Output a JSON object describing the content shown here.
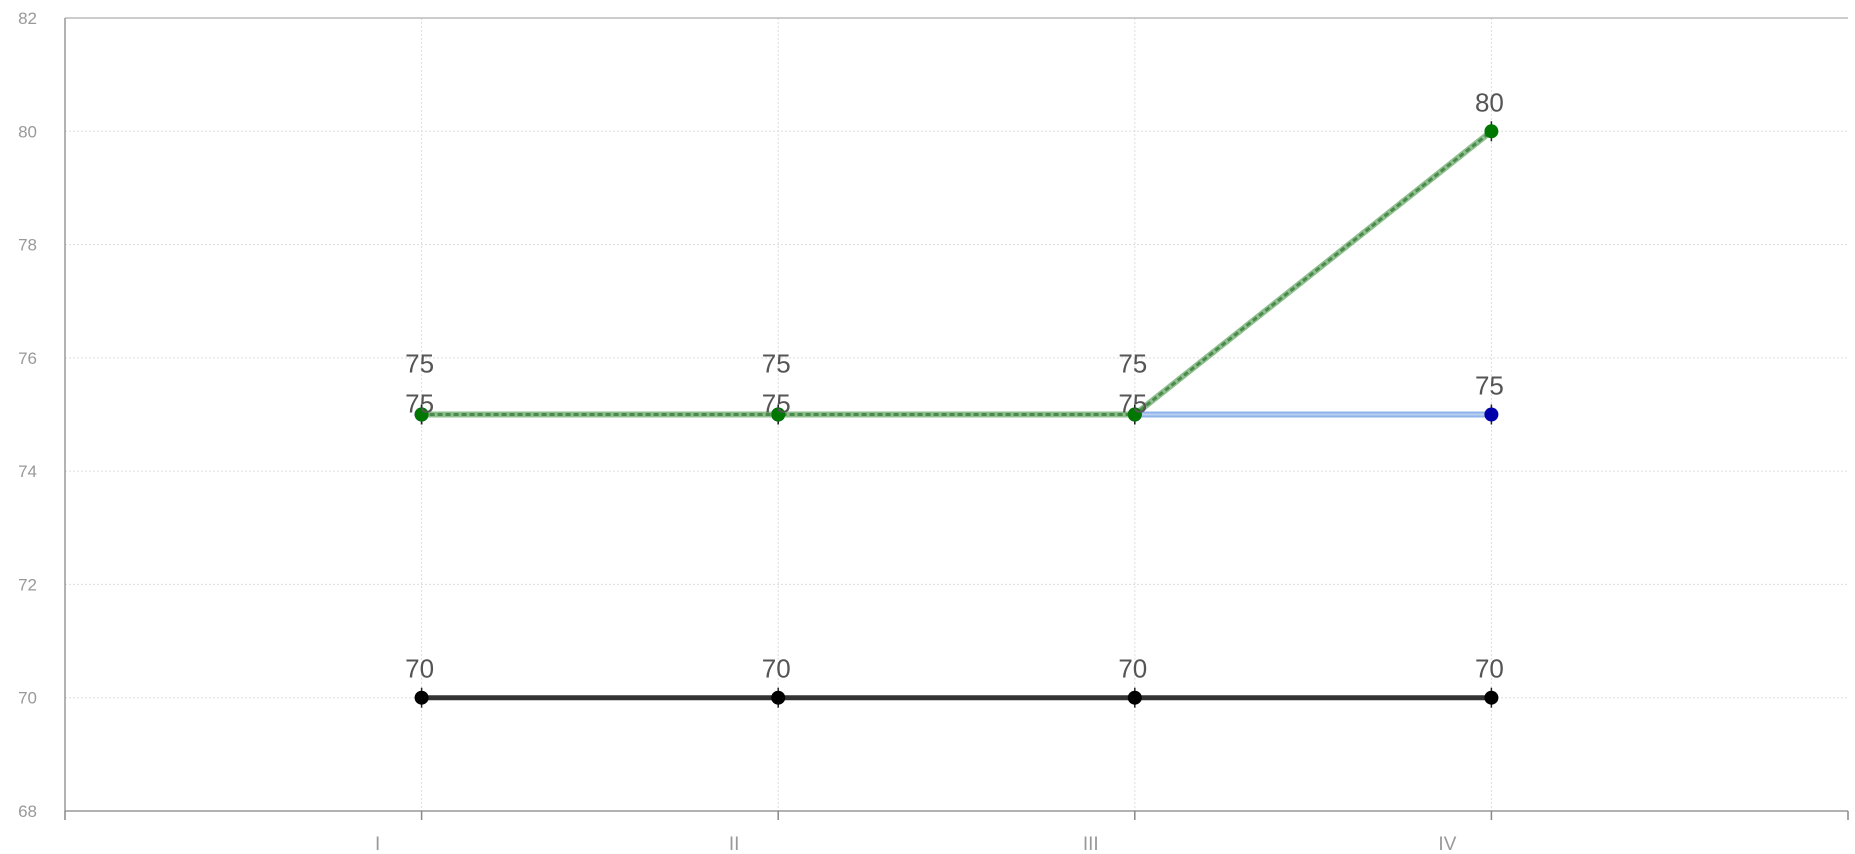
{
  "chart_data": {
    "type": "line",
    "categories": [
      "I",
      "II",
      "III",
      "IV"
    ],
    "category_slots": 5,
    "ylim": [
      68,
      82
    ],
    "yticks": [
      68,
      70,
      72,
      74,
      76,
      78,
      80,
      82
    ],
    "grid": true,
    "legend": "none",
    "series": [
      {
        "values": [
          70,
          70,
          70,
          70
        ],
        "color": "#333333",
        "marker_color": "#000000",
        "style": "solid",
        "label_position": "above"
      },
      {
        "values": [
          75,
          75,
          75,
          75
        ],
        "color": "#8fb3e8",
        "marker_color": "#0000aa",
        "style": "solid",
        "label_position": "above"
      },
      {
        "values": [
          75,
          75,
          75,
          80
        ],
        "color": "#4a8a4a",
        "marker_color": "#007700",
        "style": "dashed",
        "label_position": "high"
      }
    ]
  }
}
